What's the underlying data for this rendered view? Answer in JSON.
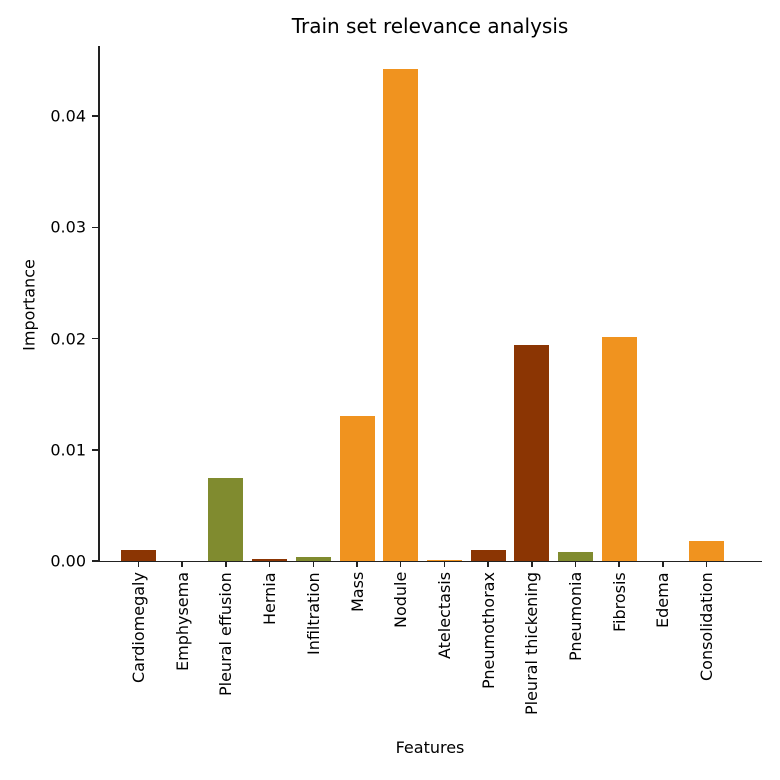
{
  "chart_data": {
    "type": "bar",
    "title": "Train set relevance analysis",
    "xlabel": "Features",
    "ylabel": "Importance",
    "ylim": [
      0,
      0.0463
    ],
    "yticks": [
      "0.00",
      "0.01",
      "0.02",
      "0.03",
      "0.04"
    ],
    "ytick_values": [
      0,
      0.01,
      0.02,
      0.03,
      0.04
    ],
    "grid": false,
    "legend": null,
    "categories": [
      "Cardiomegaly",
      "Emphysema",
      "Pleural effusion",
      "Hernia",
      "Infiltration",
      "Mass",
      "Nodule",
      "Atelectasis",
      "Pneumothorax",
      "Pleural thickening",
      "Pneumonia",
      "Fibrosis",
      "Edema",
      "Consolidation"
    ],
    "values": [
      0.001,
      0.0,
      0.0075,
      0.0002,
      0.0004,
      0.013,
      0.0442,
      0.0001,
      0.001,
      0.0194,
      0.0008,
      0.0201,
      0.0,
      0.0018
    ],
    "colors": [
      "#8b3503",
      "#8b3503",
      "#808b2f",
      "#8b3503",
      "#808b2f",
      "#f0931f",
      "#f0931f",
      "#f0931f",
      "#8b3503",
      "#8b3503",
      "#808b2f",
      "#f0931f",
      "#f0931f",
      "#f0931f"
    ]
  }
}
